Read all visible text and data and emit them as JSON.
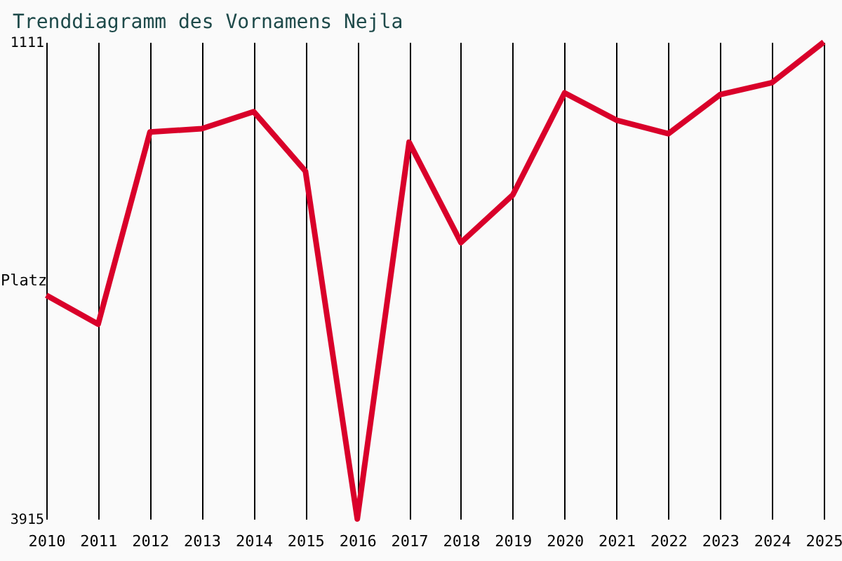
{
  "chart_data": {
    "type": "line",
    "title": "Trenddiagramm des Vornamens Nejla",
    "ylabel": "Platz",
    "x": [
      2010,
      2011,
      2012,
      2013,
      2014,
      2015,
      2016,
      2017,
      2018,
      2019,
      2020,
      2021,
      2022,
      2023,
      2024,
      2025
    ],
    "series": [
      {
        "color": "#d9002a",
        "values": [
          2600,
          2770,
          1640,
          1620,
          1520,
          1870,
          3915,
          1700,
          2290,
          2010,
          1410,
          1570,
          1650,
          1420,
          1350,
          1111
        ]
      }
    ],
    "xlim": [
      2010,
      2025
    ],
    "xticks": [
      2010,
      2011,
      2012,
      2013,
      2014,
      2015,
      2016,
      2017,
      2018,
      2019,
      2020,
      2021,
      2022,
      2023,
      2024,
      2025
    ],
    "ylim": [
      3915,
      1111
    ],
    "yticks": [
      1111,
      3915
    ],
    "grid": "x",
    "marker": "none",
    "line_style": "solid"
  }
}
